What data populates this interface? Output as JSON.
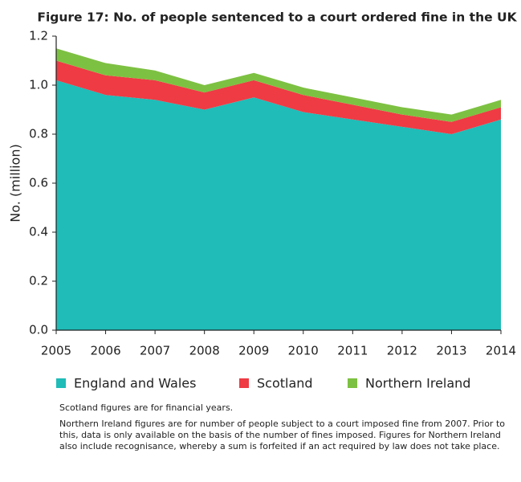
{
  "chart_data": {
    "type": "stacked-area",
    "title": "Figure 17: No. of people sentenced to a court ordered fine in the UK",
    "y_label": "No. (million)",
    "categories": [
      "2005",
      "2006",
      "2007",
      "2008",
      "2009",
      "2010",
      "2011",
      "2012",
      "2013",
      "2014"
    ],
    "series": [
      {
        "name": "England and Wales",
        "color": "#1fbcb8",
        "values": [
          1.02,
          0.96,
          0.94,
          0.9,
          0.95,
          0.89,
          0.86,
          0.83,
          0.8,
          0.86
        ]
      },
      {
        "name": "Scotland",
        "color": "#ee3b44",
        "values": [
          0.08,
          0.08,
          0.08,
          0.07,
          0.07,
          0.07,
          0.06,
          0.05,
          0.05,
          0.05
        ]
      },
      {
        "name": "Northern Ireland",
        "color": "#7dc142",
        "values": [
          0.05,
          0.05,
          0.04,
          0.03,
          0.03,
          0.03,
          0.03,
          0.03,
          0.03,
          0.03
        ]
      }
    ],
    "ylim": [
      0,
      1.2
    ],
    "yticks": [
      {
        "value": 0,
        "label": "0.0"
      },
      0.2,
      0.4,
      0.6,
      0.8,
      {
        "value": 1,
        "label": "1.0"
      },
      1.2
    ],
    "notes": [
      "Scotland figures are for financial years.",
      "Northern Ireland figures are for number of people subject to a court imposed fine from 2007. Prior to this, data is only available on the basis of the number of fines imposed. Figures for Northern Ireland also include recognisance, whereby a sum is forfeited if an act required by law does not take place."
    ]
  }
}
